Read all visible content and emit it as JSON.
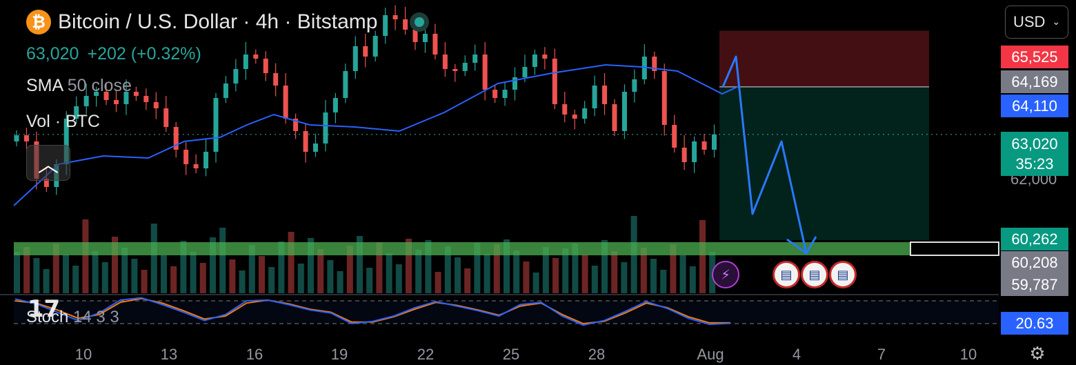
{
  "header": {
    "coin_icon": "bitcoin-icon",
    "title": "Bitcoin / U.S. Dollar · 4h · Bitstamp",
    "price": "63,020",
    "change": "+202 (+0.32%)",
    "sma_name": "SMA",
    "sma_params": "50 close",
    "vol_label": "Vol · BTC",
    "currency": "USD",
    "stoch_name": "Stoch",
    "stoch_params": "14 3 3"
  },
  "price_tags": {
    "stop": {
      "value": "65,525",
      "color": "#f23645"
    },
    "entry": {
      "value": "64,169",
      "color": "#787b86"
    },
    "sma": {
      "value": "64,110",
      "color": "#2962ff"
    },
    "last": {
      "value": "63,020",
      "countdown": "35:23",
      "color": "#089981"
    },
    "zone_top": {
      "value": "60,262",
      "color": "#089981"
    },
    "zone_bottom": {
      "value": "60,208",
      "color": "#787b86"
    },
    "target": {
      "value": "59,787",
      "color": "#787b86"
    },
    "stoch": {
      "value": "20.63",
      "color": "#2962ff"
    }
  },
  "y_axis_label": "62,000",
  "x_axis_labels": [
    "10",
    "13",
    "16",
    "19",
    "22",
    "25",
    "28",
    "Aug",
    "4",
    "7",
    "10"
  ],
  "events": {
    "bolt_icon": "lightning-event-icon",
    "us_flag_icon": "us-flag-event-icon",
    "us_events_count": 3
  },
  "colors": {
    "up": "#26a69a",
    "down": "#ef5350",
    "sma": "#2962ff",
    "stoch_k": "#2962ff",
    "stoch_d": "#f57c00",
    "drawing": "#2979ff",
    "support_zone": "#4caf50"
  },
  "chart_data": {
    "type": "candlestick",
    "timeframe": "4h",
    "y_axis_range": [
      59500,
      66700
    ],
    "last_price": 63020,
    "sma50": [
      [
        0,
        61300
      ],
      [
        25,
        62300
      ],
      [
        50,
        62500
      ],
      [
        75,
        62450
      ],
      [
        95,
        62850
      ],
      [
        115,
        62950
      ],
      [
        130,
        63250
      ],
      [
        145,
        63500
      ],
      [
        165,
        63250
      ],
      [
        190,
        63200
      ],
      [
        215,
        63100
      ],
      [
        240,
        63550
      ],
      [
        270,
        64250
      ],
      [
        300,
        64500
      ],
      [
        330,
        64700
      ],
      [
        350,
        64650
      ],
      [
        370,
        64550
      ],
      [
        395,
        64000
      ],
      [
        405,
        64200
      ]
    ],
    "closes": [
      63000,
      62850,
      61950,
      61750,
      62300,
      63400,
      63700,
      63950,
      64050,
      63850,
      63750,
      64050,
      63950,
      63800,
      63650,
      63200,
      62650,
      62300,
      62200,
      62600,
      63900,
      64250,
      64600,
      64950,
      64850,
      64500,
      64200,
      63400,
      63100,
      62600,
      62800,
      63550,
      63900,
      64550,
      65150,
      64900,
      65400,
      65900,
      65800,
      65550,
      65250,
      65450,
      64950,
      64600,
      64550,
      64750,
      64950,
      64100,
      63900,
      64100,
      64400,
      64650,
      64950,
      64850,
      63750,
      63500,
      63400,
      63650,
      64200,
      63750,
      63100,
      64050,
      64350,
      64900,
      64550,
      63250,
      62700,
      62350,
      62850,
      62650,
      63020
    ],
    "stoch_k": [
      85,
      72,
      50,
      28,
      48,
      82,
      88,
      70,
      50,
      28,
      44,
      80,
      82,
      70,
      56,
      48,
      20,
      26,
      40,
      62,
      78,
      66,
      54,
      40,
      70,
      76,
      40,
      16,
      28,
      52,
      78,
      60,
      34,
      18,
      20.63
    ],
    "stoch_d": [
      80,
      74,
      56,
      34,
      44,
      76,
      86,
      74,
      54,
      32,
      40,
      74,
      82,
      72,
      58,
      50,
      24,
      24,
      38,
      58,
      76,
      68,
      56,
      42,
      66,
      74,
      44,
      20,
      26,
      48,
      74,
      62,
      38,
      22,
      22
    ],
    "stoch_bands": [
      80,
      20
    ],
    "short_position": {
      "entry": 64169,
      "stop": 65525,
      "target": 59787
    },
    "support_zone": [
      60208,
      60262
    ],
    "projected_path": [
      64169,
      64900,
      61100,
      62850,
      60150
    ]
  }
}
